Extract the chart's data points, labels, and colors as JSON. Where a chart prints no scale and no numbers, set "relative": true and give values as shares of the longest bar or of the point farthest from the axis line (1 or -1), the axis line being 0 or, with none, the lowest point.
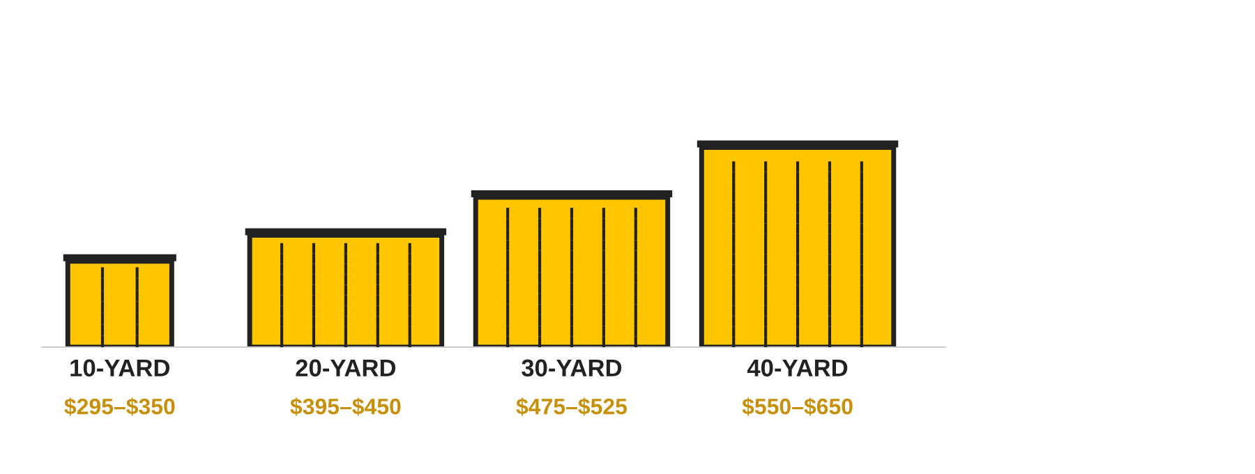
{
  "chart_data": {
    "type": "bar",
    "relative": true,
    "categories": [
      "10-YARD",
      "20-YARD",
      "30-YARD",
      "40-YARD"
    ],
    "values": [
      0.43,
      0.56,
      0.75,
      1
    ],
    "color": "#ffc600",
    "annotations": [
      "$295–$350",
      "$395–$450",
      "$475–$525",
      "$550–$650"
    ],
    "grid": false,
    "legend": false
  }
}
